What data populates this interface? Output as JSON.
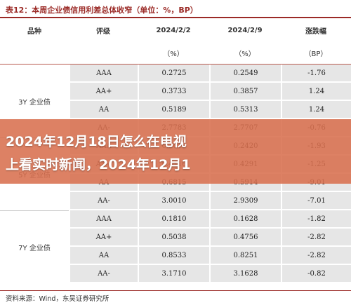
{
  "title": "表12：本周企业债信用利差总体收窄（单位：%，BP）",
  "header": {
    "col1": "品种",
    "col2": "评级",
    "col3_date": "2024/2/2",
    "col4_date": "2024/2/9",
    "col5": "涨跌幅",
    "col3_unit": "（%）",
    "col4_unit": "（%）",
    "col5_unit": "（BP）"
  },
  "groups": [
    {
      "name": "3Y 企业债",
      "rows": [
        {
          "rating": "AAA",
          "v1": "0.2725",
          "v2": "0.2549",
          "chg": "-1.76"
        },
        {
          "rating": "AA+",
          "v1": "0.3733",
          "v2": "0.3857",
          "chg": "1.24"
        },
        {
          "rating": "AA",
          "v1": "0.5189",
          "v2": "0.5313",
          "chg": "1.24"
        },
        {
          "rating": "AA-",
          "v1": "2.7783",
          "v2": "2.7707",
          "chg": "-0.76"
        }
      ]
    },
    {
      "name": "5Y 企业债",
      "rows": [
        {
          "rating": "AAA",
          "v1": "0.2613",
          "v2": "0.2420",
          "chg": "-1.93"
        },
        {
          "rating": "AA+",
          "v1": "0.4416",
          "v2": "0.4291",
          "chg": "-1.25"
        },
        {
          "rating": "AA",
          "v1": "0.6815",
          "v2": "0.5914",
          "chg": "-9.01"
        },
        {
          "rating": "AA-",
          "v1": "3.0010",
          "v2": "2.9309",
          "chg": "-7.01"
        }
      ]
    },
    {
      "name": "7Y 企业债",
      "rows": [
        {
          "rating": "AAA",
          "v1": "0.1810",
          "v2": "0.1628",
          "chg": "-1.82"
        },
        {
          "rating": "AA+",
          "v1": "0.5038",
          "v2": "0.4756",
          "chg": "-2.82"
        },
        {
          "rating": "AA",
          "v1": "0.8533",
          "v2": "0.8251",
          "chg": "-2.82"
        },
        {
          "rating": "AA-",
          "v1": "3.1710",
          "v2": "3.1628",
          "chg": "-0.82"
        }
      ]
    }
  ],
  "source": "资料来源：Wind，东吴证券研究所",
  "banner": {
    "line1": "2024年12月18日怎么在电视",
    "line2": "上看实时新闻，2024年12月1"
  }
}
